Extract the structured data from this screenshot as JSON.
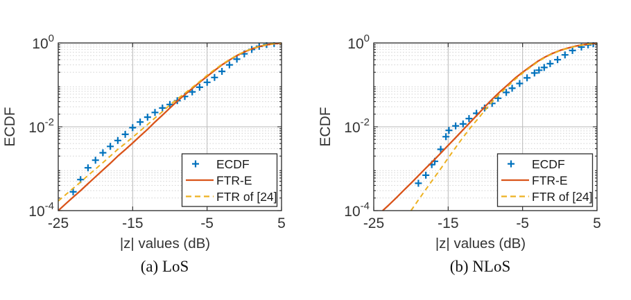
{
  "page": {
    "background": "#ffffff"
  },
  "colors": {
    "axis": "#262626",
    "tick_text": "#333333",
    "grid_major": "#b9b9b9",
    "grid_minor": "#d2d2d2",
    "legend_border": "#2b2b2b",
    "legend_background": "#ffffff",
    "series_blue": "#0072BD",
    "series_red": "#D95319",
    "series_yellow": "#EDB120"
  },
  "chart_data": [
    {
      "type": "line",
      "caption": "(a) LoS",
      "xlabel": "|z| values (dB)",
      "ylabel": "ECDF",
      "xlim": [
        -25,
        5
      ],
      "xticks": [
        -25,
        -15,
        -5,
        5
      ],
      "x_minor": [
        -20,
        -10,
        0
      ],
      "yscale": "log",
      "ylim": [
        0.0001,
        1
      ],
      "ytick_exponents": [
        0,
        -2,
        -4
      ],
      "grid": {
        "major": true,
        "minor_horizontal_log": true
      },
      "legend": {
        "position": "southeast",
        "entries": [
          "ECDF",
          "FTR-E",
          "FTR of [24]"
        ]
      },
      "series": [
        {
          "name": "ECDF",
          "style": "plus-markers",
          "color": "#0072BD",
          "x": [
            -23,
            -22,
            -21,
            -20,
            -19,
            -18,
            -17,
            -16,
            -15,
            -14,
            -13,
            -12,
            -11,
            -10,
            -9,
            -8,
            -7,
            -6,
            -5,
            -4,
            -3,
            -2,
            -1,
            0,
            1,
            2,
            3,
            4
          ],
          "y": [
            0.00028,
            0.00055,
            0.00105,
            0.0016,
            0.0024,
            0.0034,
            0.0047,
            0.0066,
            0.0095,
            0.013,
            0.017,
            0.022,
            0.028,
            0.034,
            0.042,
            0.053,
            0.068,
            0.088,
            0.115,
            0.15,
            0.21,
            0.3,
            0.41,
            0.55,
            0.7,
            0.83,
            0.92,
            0.97
          ]
        },
        {
          "name": "FTR-E",
          "style": "solid",
          "color": "#D95319",
          "x": [
            -25,
            -24,
            -23,
            -22,
            -21,
            -20,
            -19,
            -18,
            -17,
            -16,
            -15,
            -14,
            -13,
            -12,
            -11,
            -10,
            -9,
            -8,
            -7,
            -6,
            -5,
            -4,
            -3,
            -2,
            -1,
            0,
            1,
            2,
            3,
            4,
            5
          ],
          "y": [
            0.0001,
            0.000145,
            0.00021,
            0.0003,
            0.00044,
            0.00064,
            0.00093,
            0.00135,
            0.002,
            0.00285,
            0.0041,
            0.006,
            0.0087,
            0.013,
            0.019,
            0.028,
            0.041,
            0.058,
            0.082,
            0.115,
            0.16,
            0.22,
            0.3,
            0.39,
            0.5,
            0.61,
            0.72,
            0.82,
            0.9,
            0.96,
            0.99
          ]
        },
        {
          "name": "FTR of [24]",
          "style": "dashed",
          "color": "#EDB120",
          "x": [
            -25,
            -24,
            -23,
            -22,
            -21,
            -20,
            -19,
            -18,
            -17,
            -16,
            -15,
            -14,
            -13,
            -12,
            -11,
            -10,
            -9,
            -8,
            -7,
            -6,
            -5,
            -4,
            -3,
            -2,
            -1,
            0,
            1,
            2,
            3,
            4,
            5
          ],
          "y": [
            0.00017,
            0.00024,
            0.00034,
            0.00048,
            0.00069,
            0.00098,
            0.0014,
            0.002,
            0.0029,
            0.004,
            0.0056,
            0.008,
            0.0113,
            0.0163,
            0.023,
            0.033,
            0.046,
            0.063,
            0.087,
            0.12,
            0.17,
            0.23,
            0.31,
            0.4,
            0.51,
            0.62,
            0.73,
            0.83,
            0.91,
            0.965,
            0.992
          ]
        }
      ]
    },
    {
      "type": "line",
      "caption": "(b) NLoS",
      "xlabel": "|z| values (dB)",
      "ylabel": "ECDF",
      "xlim": [
        -25,
        5
      ],
      "xticks": [
        -25,
        -15,
        -5,
        5
      ],
      "x_minor": [
        -20,
        -10,
        0
      ],
      "yscale": "log",
      "ylim": [
        0.0001,
        1
      ],
      "ytick_exponents": [
        0,
        -2,
        -4
      ],
      "grid": {
        "major": true,
        "minor_horizontal_log": true
      },
      "legend": {
        "position": "southeast",
        "entries": [
          "ECDF",
          "FTR-E",
          "FTR of [24]"
        ]
      },
      "series": [
        {
          "name": "ECDF",
          "style": "plus-markers",
          "color": "#0072BD",
          "x": [
            -19,
            -18,
            -17.2,
            -16.8,
            -16,
            -15.3,
            -14.9,
            -14,
            -13,
            -12.2,
            -11.2,
            -10.1,
            -9.1,
            -8.3,
            -7.2,
            -6.4,
            -5.4,
            -4.4,
            -3.4,
            -2.8,
            -2.1,
            -1.3,
            -0.3,
            0.7,
            1.7,
            2.9,
            3.8,
            4.5
          ],
          "y": [
            0.00045,
            0.0007,
            0.00125,
            0.0015,
            0.0029,
            0.0058,
            0.0082,
            0.0105,
            0.0117,
            0.0157,
            0.021,
            0.028,
            0.036,
            0.048,
            0.066,
            0.083,
            0.108,
            0.147,
            0.192,
            0.224,
            0.26,
            0.32,
            0.4,
            0.52,
            0.66,
            0.8,
            0.9,
            0.96
          ]
        },
        {
          "name": "FTR-E",
          "style": "solid",
          "color": "#D95319",
          "x": [
            -23.8,
            -23,
            -22,
            -21,
            -20,
            -19,
            -18,
            -17,
            -16,
            -15,
            -14,
            -13,
            -12,
            -11,
            -10,
            -9,
            -8,
            -7,
            -6,
            -5,
            -4,
            -3,
            -2,
            -1,
            0,
            1,
            2,
            3,
            4,
            5
          ],
          "y": [
            0.0001,
            0.000135,
            0.0002,
            0.0003,
            0.00045,
            0.00068,
            0.00103,
            0.00155,
            0.00235,
            0.0036,
            0.0055,
            0.0085,
            0.013,
            0.02,
            0.031,
            0.047,
            0.07,
            0.1,
            0.145,
            0.2,
            0.27,
            0.36,
            0.46,
            0.56,
            0.66,
            0.75,
            0.83,
            0.9,
            0.95,
            0.99
          ]
        },
        {
          "name": "FTR of [24]",
          "style": "dashed",
          "color": "#EDB120",
          "x": [
            -20,
            -19,
            -18,
            -17,
            -16,
            -15,
            -14,
            -13,
            -12,
            -11,
            -10,
            -9,
            -8,
            -7,
            -6,
            -5,
            -4,
            -3,
            -2,
            -1,
            0,
            1,
            2,
            3,
            4,
            5
          ],
          "y": [
            0.0001,
            0.00018,
            0.00032,
            0.00057,
            0.001,
            0.0018,
            0.0032,
            0.0056,
            0.0095,
            0.0155,
            0.0255,
            0.041,
            0.063,
            0.092,
            0.135,
            0.19,
            0.26,
            0.35,
            0.45,
            0.55,
            0.65,
            0.74,
            0.82,
            0.89,
            0.945,
            0.985
          ]
        }
      ]
    }
  ]
}
